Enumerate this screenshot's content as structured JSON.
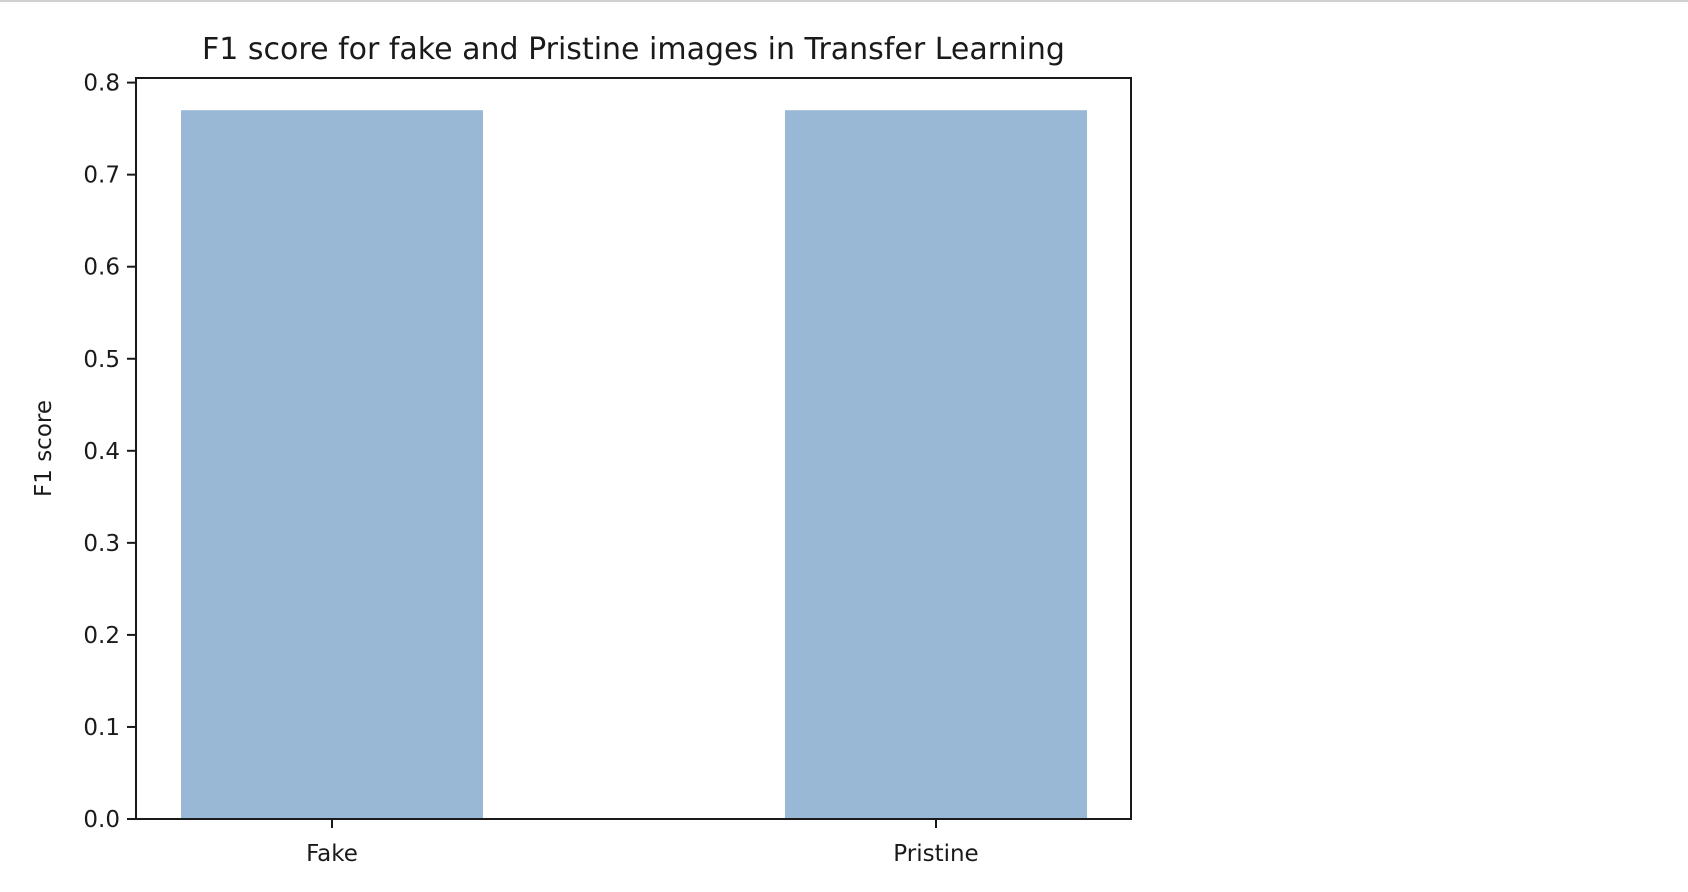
{
  "chart_data": {
    "type": "bar",
    "title": "F1 score for fake and Pristine images in Transfer Learning",
    "xlabel": "",
    "ylabel": "F1 score",
    "categories": [
      "Fake",
      "Pristine"
    ],
    "values": [
      0.77,
      0.77
    ],
    "ylim": [
      0,
      0.805
    ],
    "yticks": [
      "0.0",
      "0.1",
      "0.2",
      "0.3",
      "0.4",
      "0.5",
      "0.6",
      "0.7",
      "0.8"
    ],
    "bar_color": "#98b8d6",
    "grid": false,
    "legend": "none"
  }
}
